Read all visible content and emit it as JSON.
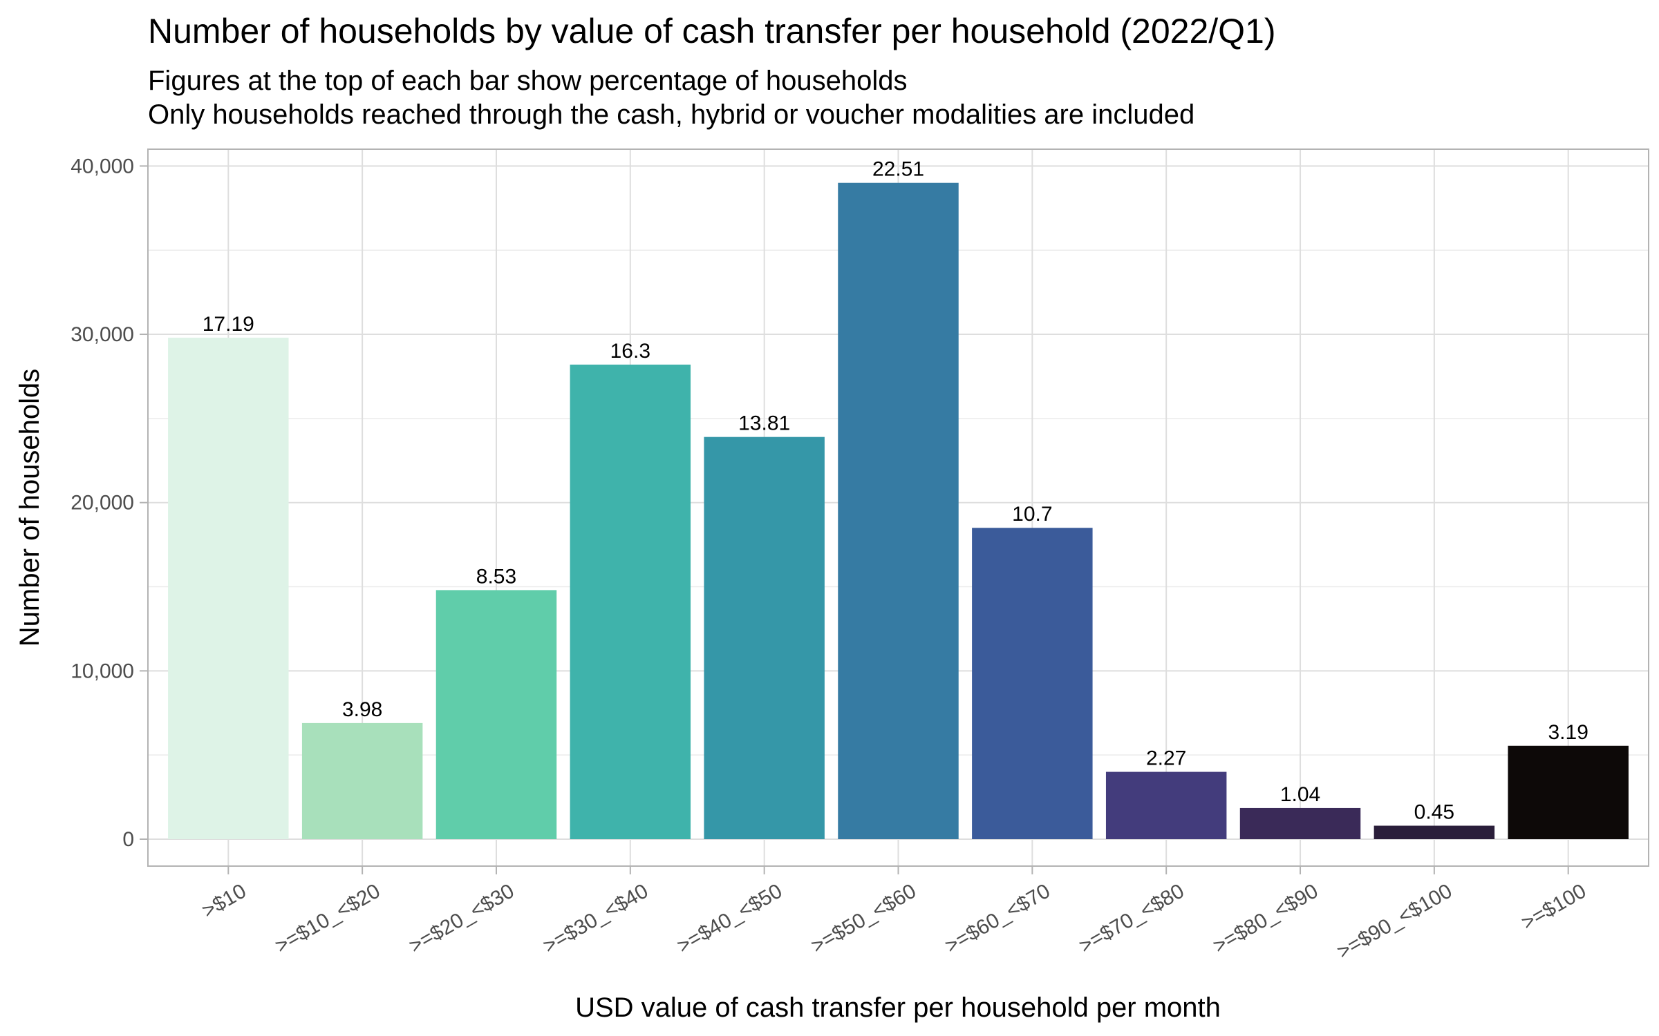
{
  "chart_data": {
    "type": "bar",
    "title": "Number of households by value of cash transfer per household (2022/Q1)",
    "subtitle_lines": [
      "Figures at the top of each bar show percentage of households",
      "Only households reached through the cash, hybrid or voucher modalities are included"
    ],
    "xlabel": "USD value of cash transfer per household per month",
    "ylabel": "Number of households",
    "ylim": [
      -1600,
      41000
    ],
    "yticks": [
      0,
      10000,
      20000,
      30000,
      40000
    ],
    "ytick_labels": [
      "0",
      "10,000",
      "20,000",
      "30,000",
      "40,000"
    ],
    "categories": [
      ">$10",
      ">=$10_<$20",
      ">=$20_<$30",
      ">=$30_<$40",
      ">=$40_<$50",
      ">=$50_<$60",
      ">=$60_<$70",
      ">=$70_<$80",
      ">=$80_<$90",
      ">=$90_<$100",
      ">=$100"
    ],
    "values": [
      29800,
      6900,
      14800,
      28200,
      23900,
      39000,
      18500,
      4000,
      1850,
      800,
      5550
    ],
    "data_labels": [
      "17.19",
      "3.98",
      "8.53",
      "16.3",
      "13.81",
      "22.51",
      "10.7",
      "2.27",
      "1.04",
      "0.45",
      "3.19"
    ],
    "colors": [
      "#def3e7",
      "#a8e0bb",
      "#60cdaa",
      "#3fb3ab",
      "#3597a8",
      "#367ba3",
      "#3b5b9a",
      "#433c7c",
      "#3a2a58",
      "#2a1e3a",
      "#0d0908"
    ],
    "grid": true,
    "legend": "none"
  }
}
